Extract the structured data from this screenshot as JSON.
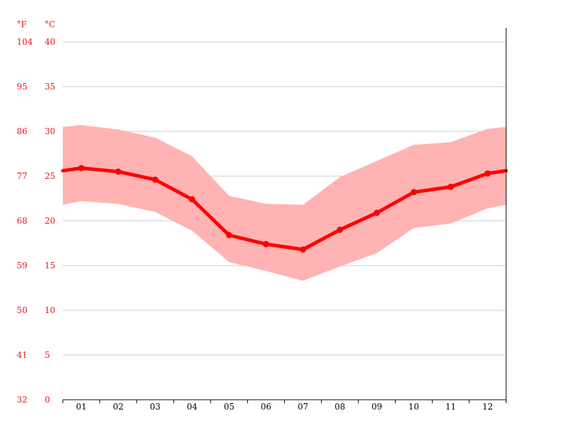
{
  "chart_data": {
    "type": "line",
    "title": "",
    "xlabel": "",
    "ylabel": "",
    "unit_labels": {
      "left": "°F",
      "right": "°C"
    },
    "categories": [
      "01",
      "02",
      "03",
      "04",
      "05",
      "06",
      "07",
      "08",
      "09",
      "10",
      "11",
      "12"
    ],
    "y_ticks_c": [
      "0",
      "5",
      "10",
      "15",
      "20",
      "25",
      "30",
      "35",
      "40"
    ],
    "y_ticks_f": [
      "32",
      "41",
      "50",
      "59",
      "68",
      "77",
      "86",
      "95",
      "104"
    ],
    "ylim": [
      0,
      40
    ],
    "grid": true,
    "series": [
      {
        "role": "mean",
        "values": [
          25.9,
          25.5,
          24.6,
          22.4,
          18.4,
          17.4,
          16.8,
          19.0,
          20.9,
          23.2,
          23.8,
          25.3
        ]
      },
      {
        "role": "max",
        "values": [
          30.7,
          30.2,
          29.3,
          27.2,
          22.8,
          21.9,
          21.8,
          24.9,
          26.7,
          28.5,
          28.8,
          30.3
        ]
      },
      {
        "role": "min",
        "values": [
          22.2,
          21.9,
          21.0,
          18.9,
          15.4,
          14.4,
          13.3,
          14.9,
          16.4,
          19.2,
          19.7,
          21.4
        ]
      }
    ],
    "edge_values": {
      "mean": [
        25.6,
        25.6
      ],
      "max": [
        30.5,
        30.5
      ],
      "min": [
        21.8,
        21.8
      ]
    },
    "colors": {
      "line": "#ff0000",
      "band": "#ffb3b3",
      "tick_text": "#e8161b",
      "grid": "#cccccc"
    }
  }
}
